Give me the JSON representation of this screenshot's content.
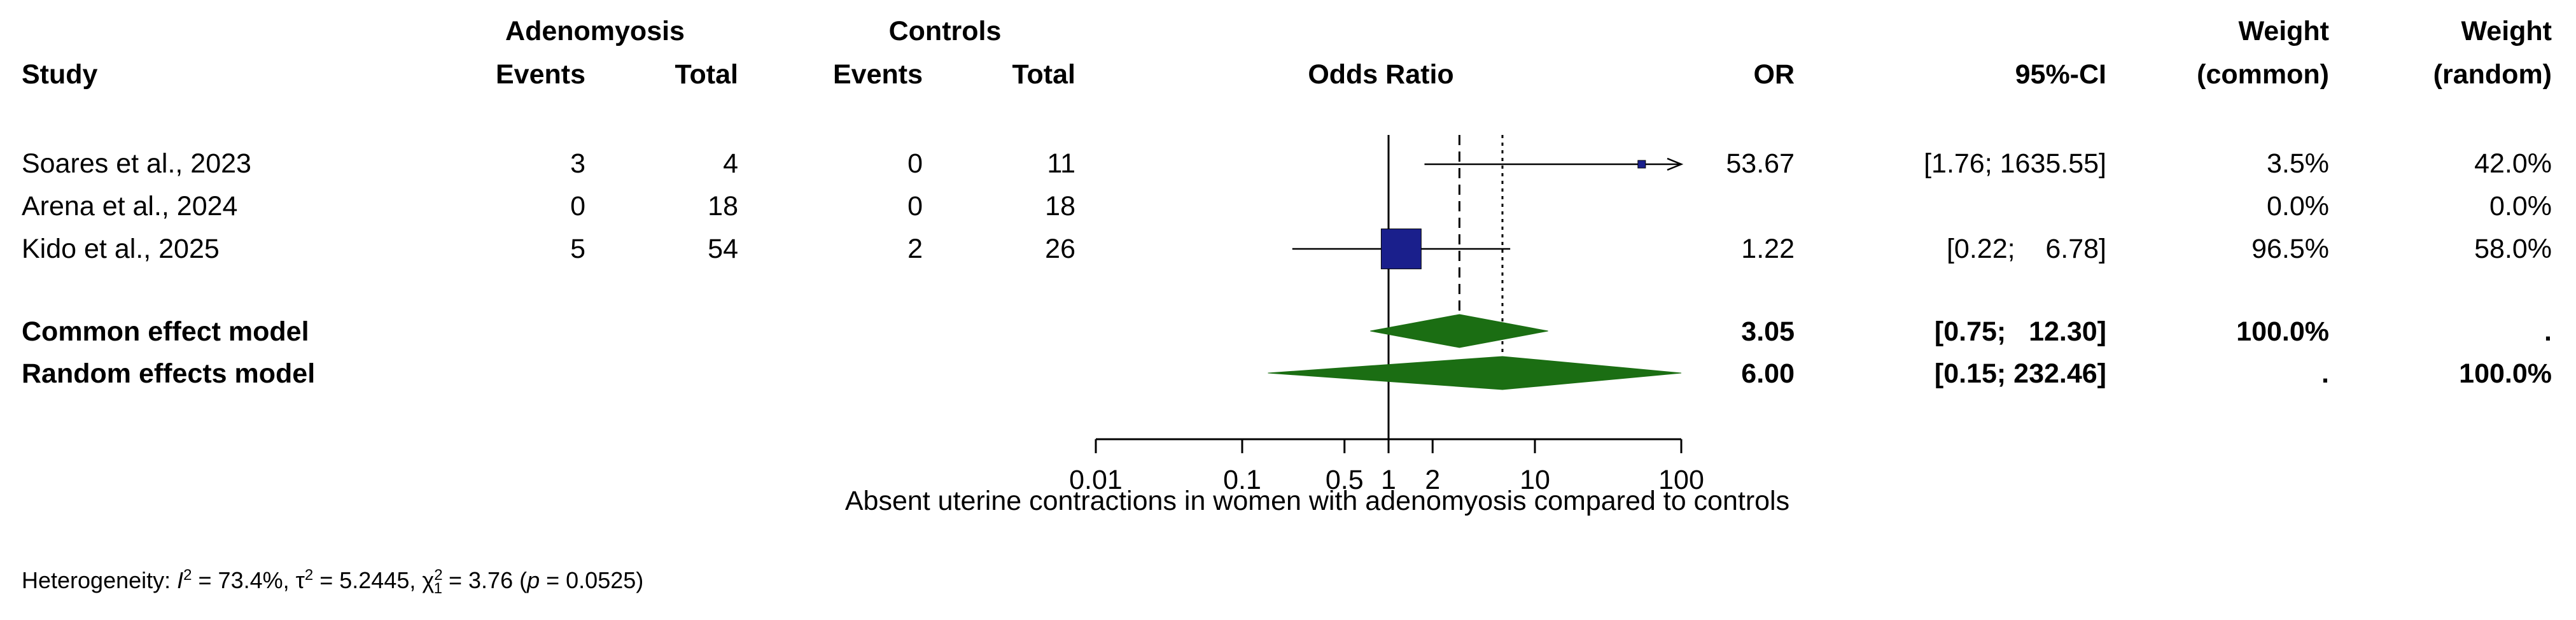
{
  "header": {
    "group1": "Adenomyosis",
    "group2": "Controls",
    "study": "Study",
    "events": "Events",
    "total": "Total",
    "odds_ratio": "Odds Ratio",
    "or": "OR",
    "ci": "95%-CI",
    "weight": "Weight",
    "common": "(common)",
    "random": "(random)"
  },
  "chart_data": {
    "type": "forest",
    "xlabel": "Absent uterine contractions in women with adenomyosis compared to controls",
    "x_ticks": [
      "0.01",
      "0.1",
      "0.5",
      "1",
      "2",
      "10",
      "100"
    ],
    "x_tick_values": [
      0.01,
      0.1,
      0.5,
      1,
      2,
      10,
      100
    ],
    "scale": "log",
    "xlim": [
      0.01,
      100
    ],
    "studies": [
      {
        "name": "Soares et al., 2023",
        "e1": "3",
        "n1": "4",
        "e2": "0",
        "n2": "11",
        "or": 53.67,
        "lo": 1.76,
        "hi": 1635.55,
        "or_text": "53.67",
        "ci_text": "[1.76; 1635.55]",
        "w_common": "3.5%",
        "w_random": "42.0%"
      },
      {
        "name": "Arena et al., 2024",
        "e1": "0",
        "n1": "18",
        "e2": "0",
        "n2": "18",
        "or": null,
        "lo": null,
        "hi": null,
        "or_text": "",
        "ci_text": "",
        "w_common": "0.0%",
        "w_random": "0.0%"
      },
      {
        "name": "Kido et al., 2025",
        "e1": "5",
        "n1": "54",
        "e2": "2",
        "n2": "26",
        "or": 1.22,
        "lo": 0.22,
        "hi": 6.78,
        "or_text": "1.22",
        "ci_text": "[0.22;    6.78]",
        "w_common": "96.5%",
        "w_random": "58.0%"
      }
    ],
    "models": [
      {
        "name": "Common effect model",
        "or": 3.05,
        "lo": 0.75,
        "hi": 12.3,
        "or_text": "3.05",
        "ci_text": "[0.75;   12.30]",
        "w_common": "100.0%",
        "w_random": "."
      },
      {
        "name": "Random effects model",
        "or": 6.0,
        "lo": 0.15,
        "hi": 232.46,
        "or_text": "6.00",
        "ci_text": "[0.15; 232.46]",
        "w_common": ".",
        "w_random": "100.0%"
      }
    ],
    "colors": {
      "square": "#1a1f8c",
      "diamond": "#1b6e13"
    }
  },
  "heterogeneity": {
    "prefix": "Heterogeneity: ",
    "i2_value": " = 73.4%, ",
    "tau2_value": " = 5.2445, ",
    "chi2_value": " = 3.76 (",
    "p_value": " = 0.0525)"
  }
}
